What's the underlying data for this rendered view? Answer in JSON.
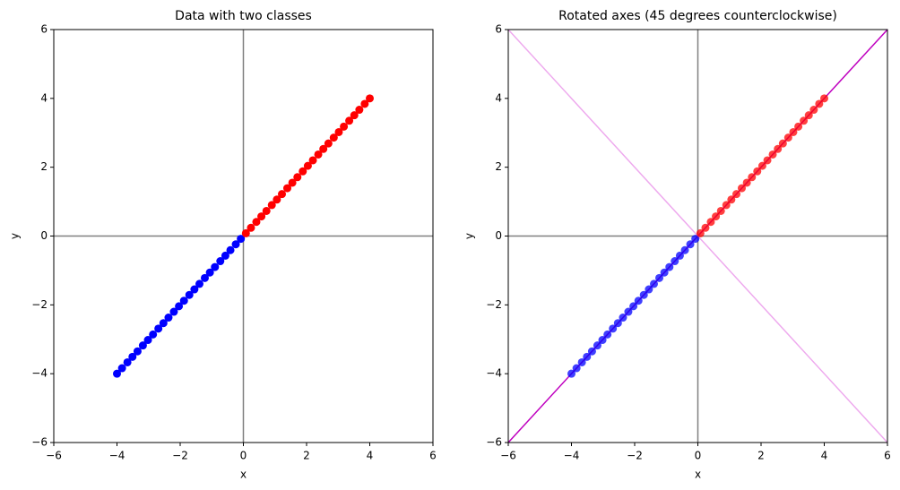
{
  "chart_data": [
    {
      "type": "scatter",
      "title": "Data with two classes",
      "xlabel": "x",
      "ylabel": "y",
      "xlim": [
        -6,
        6
      ],
      "ylim": [
        -6,
        6
      ],
      "xticks": [
        {
          "value": -6,
          "label": "−6"
        },
        {
          "value": -4,
          "label": "−4"
        },
        {
          "value": -2,
          "label": "−2"
        },
        0,
        2,
        4,
        6
      ],
      "yticks": [
        {
          "value": -6,
          "label": "−6"
        },
        {
          "value": -4,
          "label": "−4"
        },
        {
          "value": -2,
          "label": "−2"
        },
        0,
        2,
        4,
        6
      ],
      "axhline": 0,
      "axvline": 0,
      "refline_color": "#808080",
      "series": [
        {
          "color": "#0000ff",
          "x": [
            -4.0,
            -3.84,
            -3.67,
            -3.51,
            -3.35,
            -3.18,
            -3.02,
            -2.86,
            -2.69,
            -2.53,
            -2.37,
            -2.2,
            -2.04,
            -1.88,
            -1.71,
            -1.55,
            -1.39,
            -1.22,
            -1.06,
            -0.9,
            -0.73,
            -0.57,
            -0.41,
            -0.24,
            -0.08
          ],
          "y": [
            -4.0,
            -3.84,
            -3.67,
            -3.51,
            -3.35,
            -3.18,
            -3.02,
            -2.86,
            -2.69,
            -2.53,
            -2.37,
            -2.2,
            -2.04,
            -1.88,
            -1.71,
            -1.55,
            -1.39,
            -1.22,
            -1.06,
            -0.9,
            -0.73,
            -0.57,
            -0.41,
            -0.24,
            -0.08
          ]
        },
        {
          "color": "#ff0000",
          "x": [
            0.08,
            0.24,
            0.41,
            0.57,
            0.73,
            0.9,
            1.06,
            1.22,
            1.39,
            1.55,
            1.71,
            1.88,
            2.04,
            2.2,
            2.37,
            2.53,
            2.69,
            2.86,
            3.02,
            3.18,
            3.35,
            3.51,
            3.67,
            3.84,
            4.0
          ],
          "y": [
            0.08,
            0.24,
            0.41,
            0.57,
            0.73,
            0.9,
            1.06,
            1.22,
            1.39,
            1.55,
            1.71,
            1.88,
            2.04,
            2.2,
            2.37,
            2.53,
            2.69,
            2.86,
            3.02,
            3.18,
            3.35,
            3.51,
            3.67,
            3.84,
            4.0
          ]
        }
      ]
    },
    {
      "type": "scatter",
      "title": "Rotated axes (45 degrees counterclockwise)",
      "xlabel": "x",
      "ylabel": "y",
      "xlim": [
        -6,
        6
      ],
      "ylim": [
        -6,
        6
      ],
      "xticks": [
        {
          "value": -6,
          "label": "−6"
        },
        {
          "value": -4,
          "label": "−4"
        },
        {
          "value": -2,
          "label": "−2"
        },
        0,
        2,
        4,
        6
      ],
      "yticks": [
        {
          "value": -6,
          "label": "−6"
        },
        {
          "value": -4,
          "label": "−4"
        },
        {
          "value": -2,
          "label": "−2"
        },
        0,
        2,
        4,
        6
      ],
      "axhline": 0,
      "axvline": 0,
      "refline_color": "#808080",
      "lines": [
        {
          "color": "#bf00bf",
          "x": [
            -6,
            6
          ],
          "y": [
            -6,
            6
          ]
        },
        {
          "color": "#eeaaee",
          "x": [
            -6,
            6
          ],
          "y": [
            6,
            -6
          ]
        }
      ],
      "point_alpha": 0.75,
      "series": [
        {
          "color": "#0000ff",
          "x": [
            -4.0,
            -3.84,
            -3.67,
            -3.51,
            -3.35,
            -3.18,
            -3.02,
            -2.86,
            -2.69,
            -2.53,
            -2.37,
            -2.2,
            -2.04,
            -1.88,
            -1.71,
            -1.55,
            -1.39,
            -1.22,
            -1.06,
            -0.9,
            -0.73,
            -0.57,
            -0.41,
            -0.24,
            -0.08
          ],
          "y": [
            -4.0,
            -3.84,
            -3.67,
            -3.51,
            -3.35,
            -3.18,
            -3.02,
            -2.86,
            -2.69,
            -2.53,
            -2.37,
            -2.2,
            -2.04,
            -1.88,
            -1.71,
            -1.55,
            -1.39,
            -1.22,
            -1.06,
            -0.9,
            -0.73,
            -0.57,
            -0.41,
            -0.24,
            -0.08
          ]
        },
        {
          "color": "#ff0000",
          "x": [
            0.08,
            0.24,
            0.41,
            0.57,
            0.73,
            0.9,
            1.06,
            1.22,
            1.39,
            1.55,
            1.71,
            1.88,
            2.04,
            2.2,
            2.37,
            2.53,
            2.69,
            2.86,
            3.02,
            3.18,
            3.35,
            3.51,
            3.67,
            3.84,
            4.0
          ],
          "y": [
            0.08,
            0.24,
            0.41,
            0.57,
            0.73,
            0.9,
            1.06,
            1.22,
            1.39,
            1.55,
            1.71,
            1.88,
            2.04,
            2.2,
            2.37,
            2.53,
            2.69,
            2.86,
            3.02,
            3.18,
            3.35,
            3.51,
            3.67,
            3.84,
            4.0
          ]
        }
      ]
    }
  ]
}
